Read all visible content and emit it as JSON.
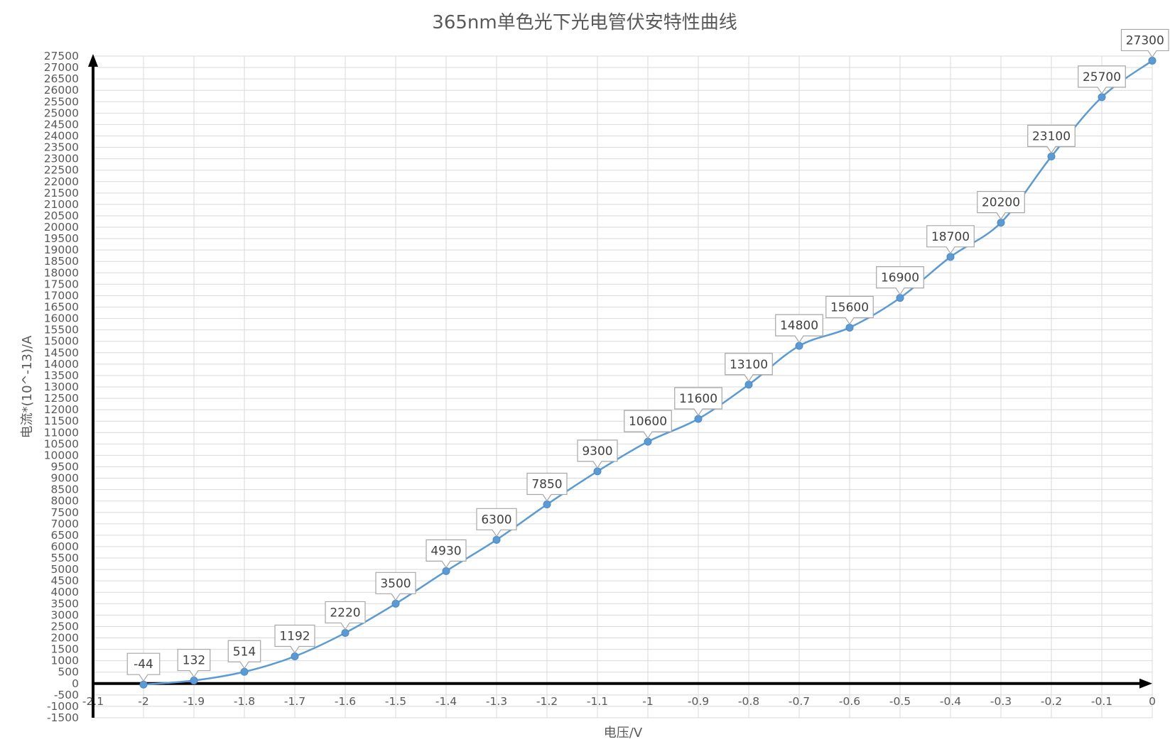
{
  "chart_data": {
    "type": "line",
    "title": "365nm单色光下光电管伏安特性曲线",
    "xlabel": "电压/V",
    "ylabel": "电流*(10^-13)/A",
    "xlim": [
      -2.1,
      0
    ],
    "ylim": [
      -1500,
      27500
    ],
    "x_ticks": [
      "-2.1",
      "-2",
      "-1.9",
      "-1.8",
      "-1.7",
      "-1.6",
      "-1.5",
      "-1.4",
      "-1.3",
      "-1.2",
      "-1.1",
      "-1",
      "-0.9",
      "-0.8",
      "-0.7",
      "-0.6",
      "-0.5",
      "-0.4",
      "-0.3",
      "-0.2",
      "-0.1",
      "0"
    ],
    "y_ticks": [
      "27500",
      "27000",
      "26500",
      "26000",
      "25500",
      "25000",
      "24500",
      "24000",
      "23500",
      "23000",
      "22500",
      "22000",
      "21500",
      "21000",
      "20500",
      "20000",
      "19500",
      "19000",
      "18500",
      "18000",
      "17500",
      "17000",
      "16500",
      "16000",
      "15500",
      "15000",
      "14500",
      "14000",
      "13500",
      "13000",
      "12500",
      "12000",
      "11500",
      "11000",
      "10500",
      "10000",
      "9500",
      "9000",
      "8500",
      "8000",
      "7500",
      "7000",
      "6500",
      "6000",
      "5500",
      "5000",
      "4500",
      "4000",
      "3500",
      "3000",
      "2500",
      "2000",
      "1500",
      "1000",
      "500",
      "0",
      "-500",
      "-1000",
      "-1500"
    ],
    "grid": true,
    "legend": "none",
    "series": [
      {
        "x": [
          -2,
          -1.9,
          -1.8,
          -1.7,
          -1.6,
          -1.5,
          -1.4,
          -1.3,
          -1.2,
          -1.1,
          -1,
          -0.9,
          -0.8,
          -0.7,
          -0.6,
          -0.5,
          -0.4,
          -0.3,
          -0.2,
          -0.1,
          0
        ],
        "y": [
          -44,
          132,
          514,
          1192,
          2220,
          3500,
          4930,
          6300,
          7850,
          9300,
          10600,
          11600,
          13100,
          14800,
          15600,
          16900,
          18700,
          20200,
          23100,
          25700,
          27300
        ],
        "labels": [
          "-44",
          "132",
          "514",
          "1192",
          "2220",
          "3500",
          "4930",
          "6300",
          "7850",
          "9300",
          "10600",
          "11600",
          "13100",
          "14800",
          "15600",
          "16900",
          "18700",
          "20200",
          "23100",
          "25700",
          "27300"
        ],
        "color": "#5b9bd5"
      }
    ]
  }
}
